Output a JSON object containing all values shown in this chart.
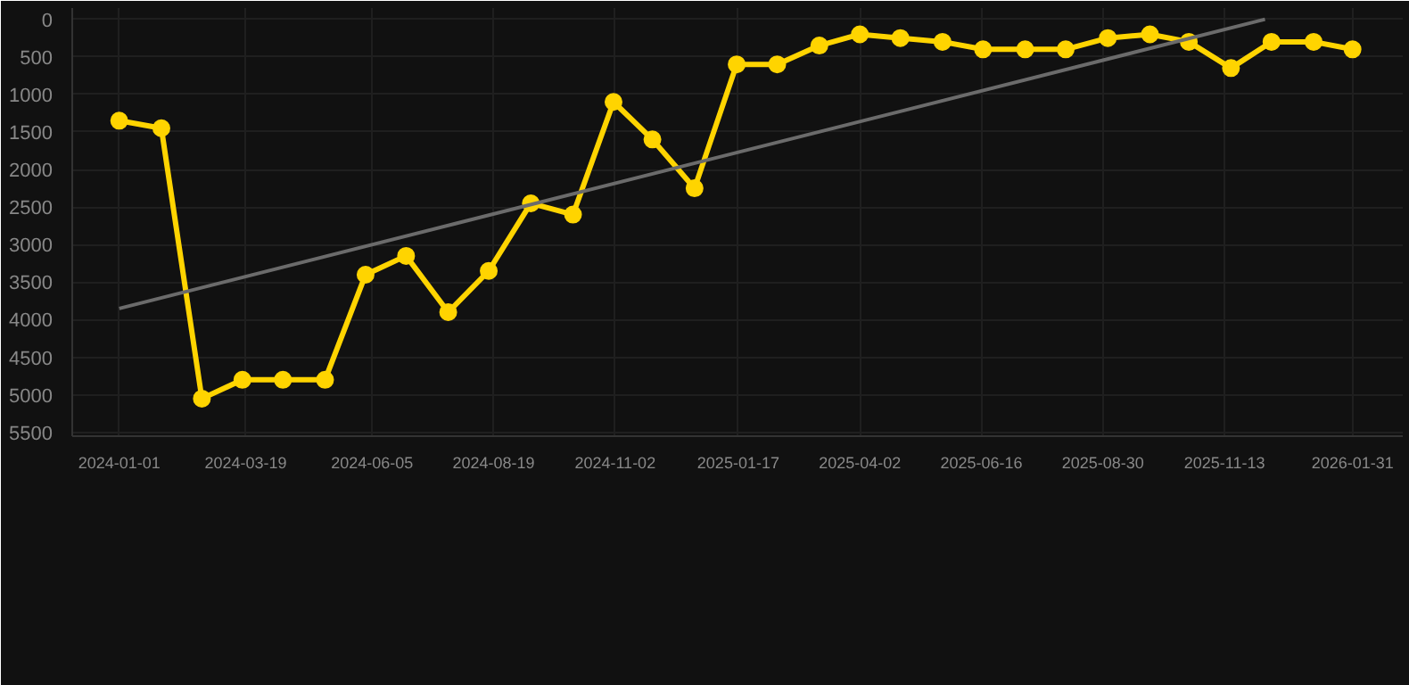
{
  "chart_data": {
    "type": "line",
    "x": [
      "2024-01-01",
      "2024-01-27",
      "2024-02-21",
      "2024-03-17",
      "2024-04-11",
      "2024-05-07",
      "2024-06-01",
      "2024-06-26",
      "2024-07-22",
      "2024-08-16",
      "2024-09-11",
      "2024-10-07",
      "2024-11-01",
      "2024-11-25",
      "2024-12-21",
      "2025-01-16",
      "2025-02-10",
      "2025-03-08",
      "2025-04-02",
      "2025-04-27",
      "2025-05-23",
      "2025-06-17",
      "2025-07-13",
      "2025-08-07",
      "2025-09-02",
      "2025-09-28",
      "2025-10-22",
      "2025-11-17",
      "2025-12-12",
      "2026-01-07",
      "2026-01-31"
    ],
    "series": [
      {
        "color": "#ffd400",
        "values": [
          1350,
          1450,
          5050,
          4800,
          4800,
          4800,
          3400,
          3150,
          3900,
          3350,
          2450,
          2600,
          1100,
          1600,
          2250,
          600,
          600,
          350,
          200,
          250,
          300,
          400,
          400,
          400,
          250,
          200,
          300,
          650,
          300,
          300,
          400
        ]
      },
      {
        "type": "line",
        "color": "#6b6b6b",
        "marker": "none",
        "x": [
          "2024-01-01",
          "2025-12-08"
        ],
        "values": [
          3850,
          0
        ]
      }
    ],
    "marker": "circle",
    "ylim": [
      5550,
      -150
    ],
    "yticks": [
      0,
      500,
      1000,
      1500,
      2000,
      2500,
      3000,
      3500,
      4000,
      4500,
      5000,
      5500
    ],
    "xlim": [
      "2023-12-03",
      "2026-03-03"
    ],
    "xticks": [
      "2024-01-01",
      "2024-03-19",
      "2024-06-05",
      "2024-08-19",
      "2024-11-02",
      "2025-01-17",
      "2025-04-02",
      "2025-06-16",
      "2025-08-30",
      "2025-11-13",
      "2026-01-31"
    ],
    "grid": true
  }
}
